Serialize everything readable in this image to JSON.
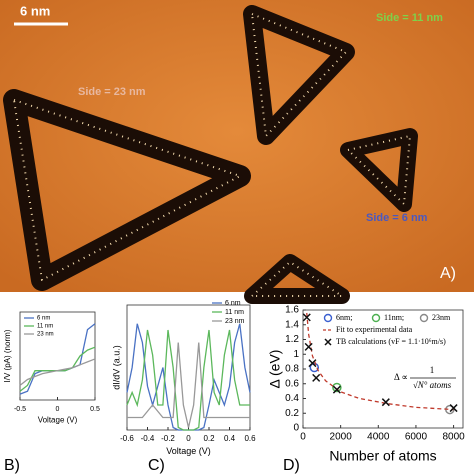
{
  "figure": {
    "scale_bar": "6 nm",
    "side_11": "Side = 11 nm",
    "side_23": "Side = 23 nm",
    "side_6": "Side = 6 nm",
    "panel_label": "A)"
  },
  "chart_data": [
    {
      "type": "line",
      "panel_label": "B)",
      "xlabel": "Voltage (V)",
      "ylabel": "I/V (pA) (norm)",
      "x": [
        -0.5,
        -0.4,
        -0.3,
        -0.2,
        -0.1,
        0,
        0.1,
        0.2,
        0.3,
        0.4,
        0.5
      ],
      "xlim": [
        -0.5,
        0.5
      ],
      "xticks": [
        -0.5,
        0,
        0.5
      ],
      "ylim": [
        0,
        30
      ],
      "legend": "upper left",
      "series": [
        {
          "name": "6 nm",
          "color": "#4a72c4",
          "line": "solid",
          "values": [
            2,
            3,
            9,
            10,
            10,
            10,
            10,
            11,
            12,
            24,
            26
          ]
        },
        {
          "name": "11 nm",
          "color": "#5cb85c",
          "line": "solid",
          "values": [
            3,
            5,
            10,
            10,
            10,
            10,
            10,
            11,
            15,
            17,
            18
          ]
        },
        {
          "name": "23 nm",
          "color": "#999999",
          "line": "solid",
          "values": [
            5,
            7,
            8,
            9,
            9.5,
            10,
            10.5,
            11,
            12,
            13,
            14
          ]
        }
      ]
    },
    {
      "type": "line",
      "panel_label": "C)",
      "xlabel": "Voltage (V)",
      "ylabel": "dI/dV (a.u.)",
      "x": [
        -0.6,
        -0.55,
        -0.5,
        -0.45,
        -0.4,
        -0.35,
        -0.3,
        -0.25,
        -0.2,
        -0.15,
        -0.1,
        -0.05,
        0,
        0.05,
        0.1,
        0.15,
        0.2,
        0.25,
        0.3,
        0.35,
        0.4,
        0.45,
        0.5,
        0.55,
        0.6
      ],
      "xlim": [
        -0.6,
        0.6
      ],
      "xticks": [
        -0.6,
        -0.4,
        -0.2,
        0,
        0.2,
        0.4,
        0.6
      ],
      "ylim": [
        0,
        1
      ],
      "legend": "upper right",
      "series": [
        {
          "name": "6 nm",
          "color": "#4a72c4",
          "line": "solid",
          "values": [
            0.3,
            0.5,
            0.85,
            0.7,
            0.35,
            0.2,
            0.35,
            0.5,
            0.2,
            0.02,
            0,
            0,
            0,
            0,
            0,
            0.02,
            0.2,
            0.4,
            0.3,
            0.2,
            0.35,
            0.7,
            0.85,
            0.5,
            0.3
          ]
        },
        {
          "name": "11 nm",
          "color": "#5cb85c",
          "line": "solid",
          "values": [
            0.2,
            0.3,
            0.2,
            0.4,
            0.8,
            0.6,
            0.2,
            0.2,
            0.8,
            0.5,
            0.02,
            0,
            0,
            0,
            0.02,
            0.5,
            0.8,
            0.3,
            0.2,
            0.6,
            0.8,
            0.4,
            0.2,
            0.2,
            0.2
          ]
        },
        {
          "name": "23 nm",
          "color": "#999999",
          "line": "solid",
          "values": [
            0.1,
            0.1,
            0.1,
            0.1,
            0.15,
            0.2,
            0.15,
            0.1,
            0.1,
            0.1,
            0.7,
            0.2,
            0.02,
            0.2,
            0.7,
            0.1,
            0.1,
            0.1,
            0.1,
            0.1,
            0.1,
            0.1,
            0.1,
            0.1,
            0.1
          ]
        }
      ]
    },
    {
      "type": "scatter",
      "panel_label": "D)",
      "xlabel": "Number of atoms",
      "ylabel": "Δ (eV)",
      "xlim": [
        0,
        8500
      ],
      "xticks": [
        0,
        2000,
        4000,
        6000,
        8000
      ],
      "ylim": [
        0,
        1.6
      ],
      "yticks": [
        0,
        0.2,
        0.4,
        0.6,
        0.8,
        1,
        1.2,
        1.4,
        1.6
      ],
      "legend": "upper",
      "annotation": {
        "lhs": "Δ ∝",
        "numerator": "1",
        "denominator": "√N° atoms"
      },
      "series": [
        {
          "name": "6nm;",
          "color": "#3a5fd0",
          "marker": "circle",
          "line": "none",
          "x": [
            600
          ],
          "values": [
            0.82
          ]
        },
        {
          "name": "11nm;",
          "color": "#4caf50",
          "marker": "circle",
          "line": "none",
          "x": [
            1800
          ],
          "values": [
            0.55
          ]
        },
        {
          "name": "23nm",
          "color": "#888888",
          "marker": "circle",
          "line": "none",
          "x": [
            7800
          ],
          "values": [
            0.25
          ]
        },
        {
          "name": "Fit to experimental data",
          "color": "#c0392b",
          "marker": "none",
          "line": "dashed",
          "x": [
            200,
            300,
            500,
            800,
            1200,
            2000,
            3000,
            4500,
            6000,
            8000
          ],
          "values": [
            1.56,
            1.27,
            0.98,
            0.78,
            0.64,
            0.49,
            0.4,
            0.33,
            0.28,
            0.25
          ]
        },
        {
          "name": "TB calculations (vF = 1.1·10⁶m/s)",
          "color": "#111111",
          "marker": "x",
          "line": "none",
          "x": [
            200,
            300,
            500,
            700,
            1800,
            4400,
            8000
          ],
          "values": [
            1.5,
            1.1,
            0.88,
            0.68,
            0.52,
            0.35,
            0.27
          ]
        }
      ]
    }
  ]
}
